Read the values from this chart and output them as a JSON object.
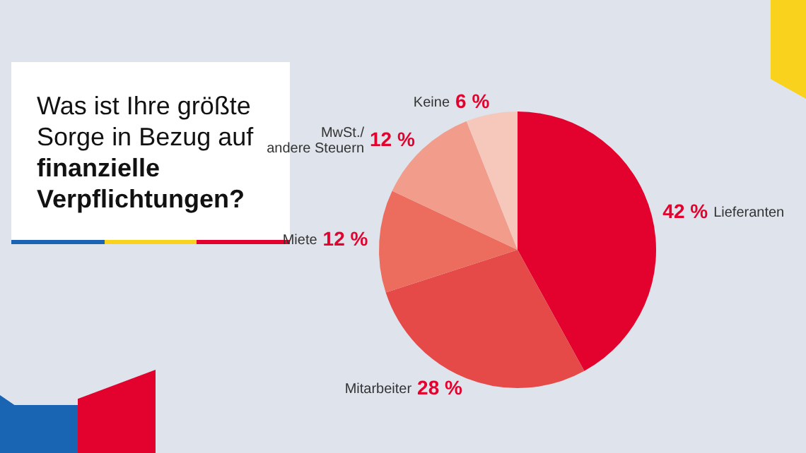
{
  "chart_data": {
    "type": "pie",
    "title": "Was ist Ihre größte Sorge in Bezug auf finanzielle Verpflichtungen?",
    "categories": [
      "Lieferanten",
      "Mitarbeiter",
      "Miete",
      "MwSt./ andere Steuern",
      "Keine"
    ],
    "values": [
      42,
      28,
      12,
      12,
      6
    ],
    "colors": [
      "#e3022d",
      "#e54a49",
      "#ec6c5e",
      "#f29c8b",
      "#f6c8bb"
    ],
    "value_labels": [
      "42 %",
      "28 %",
      "12 %",
      "12 %",
      "6 %"
    ],
    "legend": false
  }
}
